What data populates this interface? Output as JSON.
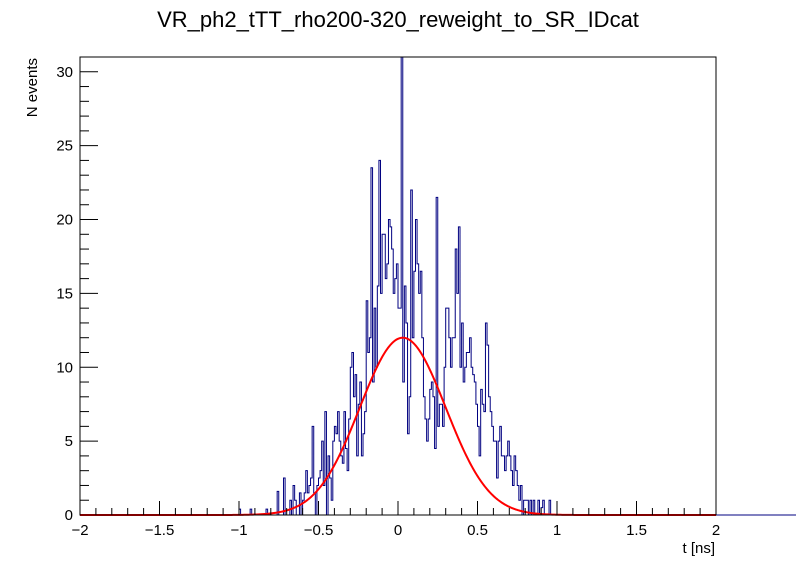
{
  "chart_data": {
    "type": "bar",
    "title": "VR_ph2_tTT_rho200-320_reweight_to_SR_IDcat",
    "xlabel": "t [ns]",
    "ylabel": "N events",
    "xlim": [
      -2,
      2
    ],
    "ylim": [
      0,
      31
    ],
    "x_ticks": [
      -2,
      -1.5,
      -1,
      -0.5,
      0,
      0.5,
      1,
      1.5,
      2
    ],
    "x_tick_labels": [
      "−2",
      "−1.5",
      "−1",
      "−0.5",
      "0",
      "0.5",
      "1",
      "1.5",
      "2"
    ],
    "y_ticks": [
      0,
      5,
      10,
      15,
      20,
      25,
      30
    ],
    "y_tick_labels": [
      "0",
      "5",
      "10",
      "15",
      "20",
      "25",
      "30"
    ],
    "grid": false,
    "series": [
      {
        "name": "histogram",
        "kind": "step",
        "color": "#000080",
        "bin_low": -1.0,
        "bin_width": 0.01,
        "values": [
          0.4,
          0,
          0,
          0,
          0,
          0,
          0,
          0.4,
          0,
          0,
          0,
          0,
          0,
          0,
          0,
          0,
          0,
          0.4,
          0,
          0,
          0,
          0,
          0,
          0,
          1.6,
          0,
          0,
          0,
          2.5,
          0,
          0,
          0,
          1,
          0,
          2,
          1,
          0,
          0,
          1.5,
          0,
          1,
          1.5,
          3,
          1.5,
          2,
          2.5,
          6,
          1.5,
          0,
          2,
          2.5,
          3,
          5,
          2,
          7,
          0,
          4,
          2.5,
          1,
          5,
          6,
          5.5,
          7,
          5,
          4,
          3.5,
          7,
          4.5,
          3,
          6.5,
          10,
          11,
          8,
          9.5,
          4,
          7.5,
          9,
          4,
          5.5,
          7,
          14.5,
          11,
          12,
          23.5,
          9,
          14,
          10,
          15.5,
          24,
          15,
          19,
          19,
          16,
          17,
          20,
          19.5,
          18,
          15,
          16,
          17,
          14,
          14,
          31,
          9,
          15.5,
          13,
          5.5,
          8,
          22,
          12,
          16.5,
          20,
          17,
          15,
          16.5,
          12,
          8,
          6.5,
          5,
          6.5,
          8.5,
          9,
          8,
          4.5,
          21.5,
          6,
          7.5,
          7.5,
          6,
          10,
          14,
          14,
          12,
          10,
          12,
          12,
          18,
          15,
          19.5,
          10,
          13,
          9,
          10,
          11,
          11,
          12,
          10,
          9.5,
          9,
          7.5,
          6,
          4,
          8.5,
          7.5,
          7,
          13,
          11.5,
          8,
          7,
          6,
          5,
          5,
          2.5,
          5,
          6,
          4,
          4,
          3,
          4,
          5,
          4,
          3,
          2,
          4,
          3,
          2,
          1,
          2,
          0,
          1,
          1,
          1,
          0,
          1,
          0,
          1,
          0,
          0,
          1,
          0,
          0.5,
          1,
          0,
          0,
          0,
          1,
          0,
          0,
          0,
          0,
          0,
          0,
          0,
          0,
          0,
          0,
          0,
          0,
          0,
          0,
          0,
          0,
          0,
          0,
          0,
          0,
          0,
          0,
          0,
          0,
          0,
          0,
          0,
          0,
          0,
          0,
          0,
          0,
          0,
          0,
          0,
          0,
          0,
          0,
          0,
          0,
          0,
          0,
          0,
          0,
          0,
          0,
          0,
          0,
          0,
          0,
          0,
          0,
          0,
          0,
          0,
          0,
          0,
          0,
          0,
          0,
          0,
          0,
          0,
          0,
          0,
          0,
          0,
          0,
          0,
          0,
          0,
          0,
          0,
          0,
          0,
          0,
          0,
          0,
          0,
          0,
          0,
          0,
          0,
          0,
          0,
          0,
          0,
          0,
          0,
          0,
          0,
          0,
          0,
          0,
          0,
          0,
          0,
          0,
          0,
          0,
          0,
          0,
          0,
          0,
          0,
          0,
          0,
          0,
          0,
          0,
          0,
          0,
          0,
          0,
          0,
          0,
          0,
          0,
          0,
          0,
          0,
          0,
          0,
          0,
          0,
          0,
          0,
          0,
          0,
          0,
          0,
          0,
          0,
          0,
          0,
          0,
          0,
          0,
          0,
          0,
          0,
          0,
          0,
          0,
          0,
          0,
          0,
          0,
          0,
          0,
          0,
          0,
          0,
          0,
          0,
          0,
          0,
          0,
          0,
          0,
          0,
          0,
          0,
          0,
          0,
          0,
          0,
          0,
          0,
          0,
          0,
          0,
          0,
          0,
          0,
          0,
          0,
          0,
          0,
          0,
          0,
          0,
          0,
          0,
          0,
          0,
          0,
          0,
          0,
          0,
          0,
          0,
          0,
          0
        ]
      },
      {
        "name": "gaussian fit",
        "kind": "function",
        "color": "#ff0000",
        "amplitude": 12.0,
        "mean": 0.03,
        "sigma": 0.27
      }
    ]
  }
}
